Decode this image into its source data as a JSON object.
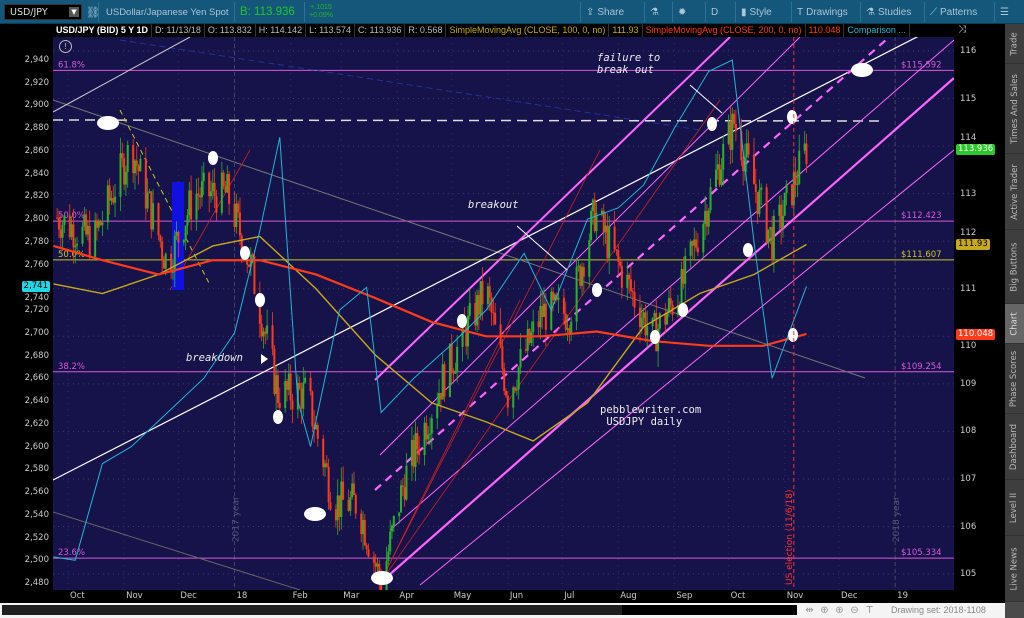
{
  "toolbar": {
    "symbol": "USD/JPY",
    "description": "USDollar/Japanese Yen Spot",
    "bid": "B: 113.936",
    "change": "+.1015",
    "change_pct": "+0.09%",
    "buttons": [
      {
        "label": "Share",
        "icon": "share-icon"
      },
      {
        "label": "",
        "icon": "flask-icon"
      },
      {
        "label": "",
        "icon": "gear-icon"
      },
      {
        "label": "D",
        "icon": ""
      },
      {
        "label": "Style",
        "icon": "candle-style-icon"
      },
      {
        "label": "Drawings",
        "icon": "text-t-icon"
      },
      {
        "label": "Studies",
        "icon": "flask-icon"
      },
      {
        "label": "Patterns",
        "icon": "patterns-icon"
      },
      {
        "label": "",
        "icon": "menu-icon"
      }
    ]
  },
  "header": {
    "title": "USD/JPY (BID) 5 Y 1D",
    "date": "D: 11/13/18",
    "open": "O: 113.832",
    "high": "H: 114.142",
    "low": "L: 113.574",
    "close": "C: 113.936",
    "range": "R: 0.568",
    "sma100_label": "SimpleMovingAvg (CLOSE, 100, 0, no)",
    "sma100_value": "111.93",
    "sma200_label": "SimpleMovingAvg (CLOSE, 200, 0, no)",
    "sma200_value": "110.048",
    "comparison_label": "Comparison ..."
  },
  "side_tabs": [
    "Trade",
    "Times And Sales",
    "Active Trader",
    "Big Buttons",
    "Chart",
    "Phase Scores",
    "Dashboard",
    "Level II",
    "Live News"
  ],
  "active_tab": "Chart",
  "footer": {
    "drawing_set": "Drawing set: 2018-1108"
  },
  "colors": {
    "toolbar": "#15577a",
    "plot_bg": "#16124a",
    "up": "#2bb32b",
    "down": "#ff3b1a",
    "sma100": "#c8a81e",
    "sma200": "#ff3b1a",
    "comparison": "#22b7d6",
    "fib": "#d85ad8",
    "channel": "#ff66ff"
  },
  "chart_data": {
    "type": "candlestick",
    "right_axis": {
      "ticks": [
        "116",
        "115",
        "114",
        "113",
        "112",
        "111",
        "110",
        "109",
        "108",
        "107",
        "106",
        "105"
      ],
      "range": [
        104.7,
        116.3
      ]
    },
    "left_axis": {
      "ticks": [
        "2,940",
        "2,920",
        "2,900",
        "2,880",
        "2,860",
        "2,840",
        "2,820",
        "2,800",
        "2,780",
        "2,760",
        "2,740",
        "2,720",
        "2,700",
        "2,680",
        "2,660",
        "2,640",
        "2,620",
        "2,600",
        "2,580",
        "2,560",
        "2,540",
        "2,520",
        "2,500",
        "2,480"
      ],
      "range": [
        2475,
        2950
      ]
    },
    "x_ticks": [
      "Oct",
      "Nov",
      "Dec",
      "18",
      "Feb",
      "Mar",
      "Apr",
      "May",
      "Jun",
      "Jul",
      "Aug",
      "Sep",
      "Oct",
      "Nov",
      "Dec",
      "19"
    ],
    "price_close": [
      [
        "2017-09-25",
        112.5
      ],
      [
        "2017-10-15",
        112.0
      ],
      [
        "2017-11-05",
        114.0
      ],
      [
        "2017-11-25",
        111.5
      ],
      [
        "2017-12-10",
        113.0
      ],
      [
        "2017-12-28",
        113.0
      ],
      [
        "2018-01-10",
        111.5
      ],
      [
        "2018-01-25",
        108.8
      ],
      [
        "2018-02-10",
        108.8
      ],
      [
        "2018-02-25",
        106.5
      ],
      [
        "2018-03-10",
        106.5
      ],
      [
        "2018-03-23",
        104.8
      ],
      [
        "2018-04-05",
        107.0
      ],
      [
        "2018-04-25",
        109.0
      ],
      [
        "2018-05-20",
        111.0
      ],
      [
        "2018-06-01",
        108.8
      ],
      [
        "2018-06-20",
        110.5
      ],
      [
        "2018-07-05",
        110.5
      ],
      [
        "2018-07-19",
        112.6
      ],
      [
        "2018-08-01",
        111.5
      ],
      [
        "2018-08-20",
        110.0
      ],
      [
        "2018-09-05",
        111.0
      ],
      [
        "2018-09-25",
        113.5
      ],
      [
        "2018-10-04",
        114.5
      ],
      [
        "2018-10-25",
        112.0
      ],
      [
        "2018-11-01",
        112.7
      ],
      [
        "2018-11-13",
        113.94
      ]
    ],
    "series": [
      {
        "name": "SimpleMovingAvg (CLOSE, 100, 0, no)",
        "points": [
          [
            "2017-09-23",
            111.1
          ],
          [
            "2017-10-20",
            110.9
          ],
          [
            "2017-11-20",
            111.3
          ],
          [
            "2017-12-20",
            111.9
          ],
          [
            "2018-01-15",
            112.1
          ],
          [
            "2018-02-15",
            111.0
          ],
          [
            "2018-03-20",
            109.6
          ],
          [
            "2018-04-20",
            108.6
          ],
          [
            "2018-05-20",
            108.2
          ],
          [
            "2018-06-15",
            107.8
          ],
          [
            "2018-07-15",
            108.6
          ],
          [
            "2018-08-15",
            110.2
          ],
          [
            "2018-09-15",
            110.9
          ],
          [
            "2018-10-15",
            111.3
          ],
          [
            "2018-11-13",
            111.93
          ]
        ]
      },
      {
        "name": "SimpleMovingAvg (CLOSE, 200, 0, no)",
        "points": [
          [
            "2017-09-23",
            111.9
          ],
          [
            "2017-10-20",
            111.6
          ],
          [
            "2017-11-20",
            111.3
          ],
          [
            "2017-12-20",
            111.6
          ],
          [
            "2018-01-15",
            111.6
          ],
          [
            "2018-02-15",
            111.3
          ],
          [
            "2018-03-20",
            110.8
          ],
          [
            "2018-04-20",
            110.3
          ],
          [
            "2018-05-20",
            110.0
          ],
          [
            "2018-06-20",
            110.0
          ],
          [
            "2018-07-20",
            110.1
          ],
          [
            "2018-08-20",
            109.9
          ],
          [
            "2018-09-20",
            109.8
          ],
          [
            "2018-10-20",
            109.8
          ],
          [
            "2018-11-13",
            110.05
          ]
        ]
      },
      {
        "name": "Comparison",
        "axis": "left",
        "points": [
          [
            "2017-09-23",
            2503
          ],
          [
            "2017-10-05",
            2500
          ],
          [
            "2017-10-20",
            2585
          ],
          [
            "2017-11-05",
            2600
          ],
          [
            "2017-11-25",
            2630
          ],
          [
            "2017-12-15",
            2660
          ],
          [
            "2018-01-01",
            2700
          ],
          [
            "2018-01-15",
            2790
          ],
          [
            "2018-01-26",
            2872
          ],
          [
            "2018-02-05",
            2640
          ],
          [
            "2018-02-12",
            2600
          ],
          [
            "2018-02-28",
            2720
          ],
          [
            "2018-03-15",
            2740
          ],
          [
            "2018-03-23",
            2630
          ],
          [
            "2018-04-10",
            2660
          ],
          [
            "2018-05-01",
            2690
          ],
          [
            "2018-05-20",
            2720
          ],
          [
            "2018-06-10",
            2770
          ],
          [
            "2018-06-25",
            2720
          ],
          [
            "2018-07-15",
            2800
          ],
          [
            "2018-08-01",
            2810
          ],
          [
            "2018-08-15",
            2830
          ],
          [
            "2018-09-01",
            2880
          ],
          [
            "2018-09-20",
            2930
          ],
          [
            "2018-10-03",
            2940
          ],
          [
            "2018-10-15",
            2780
          ],
          [
            "2018-10-25",
            2660
          ],
          [
            "2018-11-01",
            2690
          ],
          [
            "2018-11-13",
            2741
          ]
        ]
      }
    ],
    "fib_levels": [
      {
        "pct": "61.8%",
        "price": "$115.592",
        "value": 115.592,
        "color": "#d85ad8"
      },
      {
        "pct": "50.0%",
        "price": "$112.423",
        "value": 112.423,
        "color": "#d85ad8"
      },
      {
        "pct": "50.0%",
        "price": "$111.607",
        "value": 111.607,
        "color": "#c8c81e"
      },
      {
        "pct": "38.2%",
        "price": "$109.254",
        "value": 109.254,
        "color": "#d85ad8"
      },
      {
        "pct": "23.6%",
        "price": "$105.334",
        "value": 105.334,
        "color": "#d85ad8"
      }
    ],
    "annotations": [
      "failure to\nbreak out",
      "breakout",
      "breakdown",
      "pebblewriter.com\n USDJPY daily"
    ],
    "events": [
      {
        "date": "2018-11-06",
        "label": "US election (11/6/18)"
      }
    ],
    "year_markers": [
      {
        "date": "2018-01-01",
        "label": "2017 year"
      },
      {
        "date": "2019-01-01",
        "label": "2018 year"
      }
    ],
    "badges": {
      "last": "113.936",
      "sma100": "111.93",
      "sma200": "110.048",
      "comparison": "2,741"
    }
  }
}
